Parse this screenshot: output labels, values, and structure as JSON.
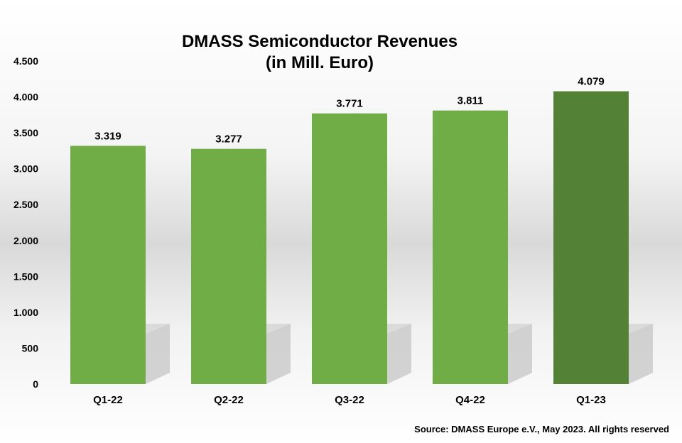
{
  "chart_data": {
    "type": "bar",
    "title_line1": "DMASS Semiconductor Revenues",
    "title_line2": "(in Mill. Euro)",
    "categories": [
      "Q1-22",
      "Q2-22",
      "Q3-22",
      "Q4-22",
      "Q1-23"
    ],
    "values": [
      3319,
      3277,
      3771,
      3811,
      4079
    ],
    "value_labels": [
      "3.319",
      "3.277",
      "3.771",
      "3.811",
      "4.079"
    ],
    "y_ticks": [
      0,
      500,
      1000,
      1500,
      2000,
      2500,
      3000,
      3500,
      4000,
      4500
    ],
    "y_tick_labels": [
      "0",
      "500",
      "1.000",
      "1.500",
      "2.000",
      "2.500",
      "3.000",
      "3.500",
      "4.000",
      "4.500"
    ],
    "ylim": [
      0,
      4500
    ],
    "grid": false,
    "colors": {
      "bar": "#70ad47",
      "highlight_bar": "#538135"
    },
    "highlight_index": 4
  },
  "source": "Source: DMASS Europe e.V., May 2023. All rights reserved"
}
